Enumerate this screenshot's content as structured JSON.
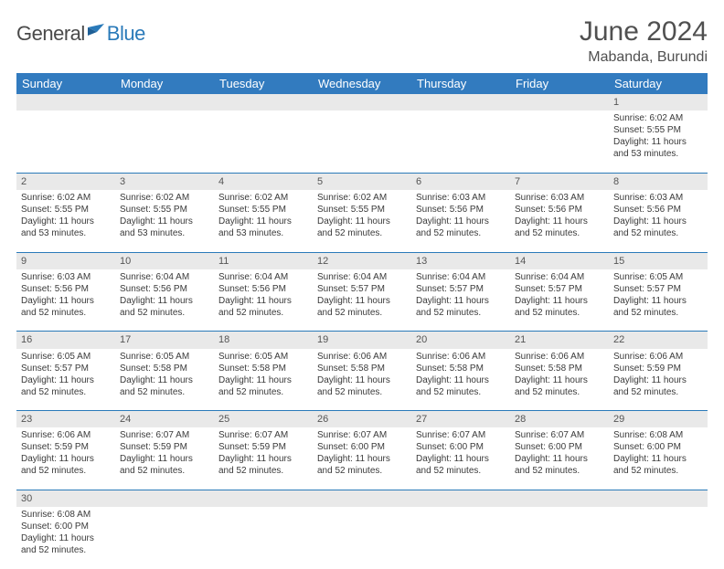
{
  "brand": {
    "part1": "General",
    "part2": "Blue"
  },
  "title": "June 2024",
  "location": "Mabanda, Burundi",
  "colors": {
    "header_bg": "#327bbf",
    "header_fg": "#ffffff",
    "daynum_bg": "#e9e9e9",
    "rule": "#2a7ab9",
    "brand_blue": "#2a7ab9",
    "text": "#3a3a3a"
  },
  "weekdays": [
    "Sunday",
    "Monday",
    "Tuesday",
    "Wednesday",
    "Thursday",
    "Friday",
    "Saturday"
  ],
  "weeks": [
    {
      "nums": [
        "",
        "",
        "",
        "",
        "",
        "",
        "1"
      ],
      "cells": [
        null,
        null,
        null,
        null,
        null,
        null,
        {
          "sunrise": "6:02 AM",
          "sunset": "5:55 PM",
          "day": "11 hours and 53 minutes."
        }
      ]
    },
    {
      "nums": [
        "2",
        "3",
        "4",
        "5",
        "6",
        "7",
        "8"
      ],
      "cells": [
        {
          "sunrise": "6:02 AM",
          "sunset": "5:55 PM",
          "day": "11 hours and 53 minutes."
        },
        {
          "sunrise": "6:02 AM",
          "sunset": "5:55 PM",
          "day": "11 hours and 53 minutes."
        },
        {
          "sunrise": "6:02 AM",
          "sunset": "5:55 PM",
          "day": "11 hours and 53 minutes."
        },
        {
          "sunrise": "6:02 AM",
          "sunset": "5:55 PM",
          "day": "11 hours and 52 minutes."
        },
        {
          "sunrise": "6:03 AM",
          "sunset": "5:56 PM",
          "day": "11 hours and 52 minutes."
        },
        {
          "sunrise": "6:03 AM",
          "sunset": "5:56 PM",
          "day": "11 hours and 52 minutes."
        },
        {
          "sunrise": "6:03 AM",
          "sunset": "5:56 PM",
          "day": "11 hours and 52 minutes."
        }
      ]
    },
    {
      "nums": [
        "9",
        "10",
        "11",
        "12",
        "13",
        "14",
        "15"
      ],
      "cells": [
        {
          "sunrise": "6:03 AM",
          "sunset": "5:56 PM",
          "day": "11 hours and 52 minutes."
        },
        {
          "sunrise": "6:04 AM",
          "sunset": "5:56 PM",
          "day": "11 hours and 52 minutes."
        },
        {
          "sunrise": "6:04 AM",
          "sunset": "5:56 PM",
          "day": "11 hours and 52 minutes."
        },
        {
          "sunrise": "6:04 AM",
          "sunset": "5:57 PM",
          "day": "11 hours and 52 minutes."
        },
        {
          "sunrise": "6:04 AM",
          "sunset": "5:57 PM",
          "day": "11 hours and 52 minutes."
        },
        {
          "sunrise": "6:04 AM",
          "sunset": "5:57 PM",
          "day": "11 hours and 52 minutes."
        },
        {
          "sunrise": "6:05 AM",
          "sunset": "5:57 PM",
          "day": "11 hours and 52 minutes."
        }
      ]
    },
    {
      "nums": [
        "16",
        "17",
        "18",
        "19",
        "20",
        "21",
        "22"
      ],
      "cells": [
        {
          "sunrise": "6:05 AM",
          "sunset": "5:57 PM",
          "day": "11 hours and 52 minutes."
        },
        {
          "sunrise": "6:05 AM",
          "sunset": "5:58 PM",
          "day": "11 hours and 52 minutes."
        },
        {
          "sunrise": "6:05 AM",
          "sunset": "5:58 PM",
          "day": "11 hours and 52 minutes."
        },
        {
          "sunrise": "6:06 AM",
          "sunset": "5:58 PM",
          "day": "11 hours and 52 minutes."
        },
        {
          "sunrise": "6:06 AM",
          "sunset": "5:58 PM",
          "day": "11 hours and 52 minutes."
        },
        {
          "sunrise": "6:06 AM",
          "sunset": "5:58 PM",
          "day": "11 hours and 52 minutes."
        },
        {
          "sunrise": "6:06 AM",
          "sunset": "5:59 PM",
          "day": "11 hours and 52 minutes."
        }
      ]
    },
    {
      "nums": [
        "23",
        "24",
        "25",
        "26",
        "27",
        "28",
        "29"
      ],
      "cells": [
        {
          "sunrise": "6:06 AM",
          "sunset": "5:59 PM",
          "day": "11 hours and 52 minutes."
        },
        {
          "sunrise": "6:07 AM",
          "sunset": "5:59 PM",
          "day": "11 hours and 52 minutes."
        },
        {
          "sunrise": "6:07 AM",
          "sunset": "5:59 PM",
          "day": "11 hours and 52 minutes."
        },
        {
          "sunrise": "6:07 AM",
          "sunset": "6:00 PM",
          "day": "11 hours and 52 minutes."
        },
        {
          "sunrise": "6:07 AM",
          "sunset": "6:00 PM",
          "day": "11 hours and 52 minutes."
        },
        {
          "sunrise": "6:07 AM",
          "sunset": "6:00 PM",
          "day": "11 hours and 52 minutes."
        },
        {
          "sunrise": "6:08 AM",
          "sunset": "6:00 PM",
          "day": "11 hours and 52 minutes."
        }
      ]
    },
    {
      "nums": [
        "30",
        "",
        "",
        "",
        "",
        "",
        ""
      ],
      "cells": [
        {
          "sunrise": "6:08 AM",
          "sunset": "6:00 PM",
          "day": "11 hours and 52 minutes."
        },
        null,
        null,
        null,
        null,
        null,
        null
      ]
    }
  ],
  "labels": {
    "sunrise": "Sunrise: ",
    "sunset": "Sunset: ",
    "daylight": "Daylight: "
  }
}
